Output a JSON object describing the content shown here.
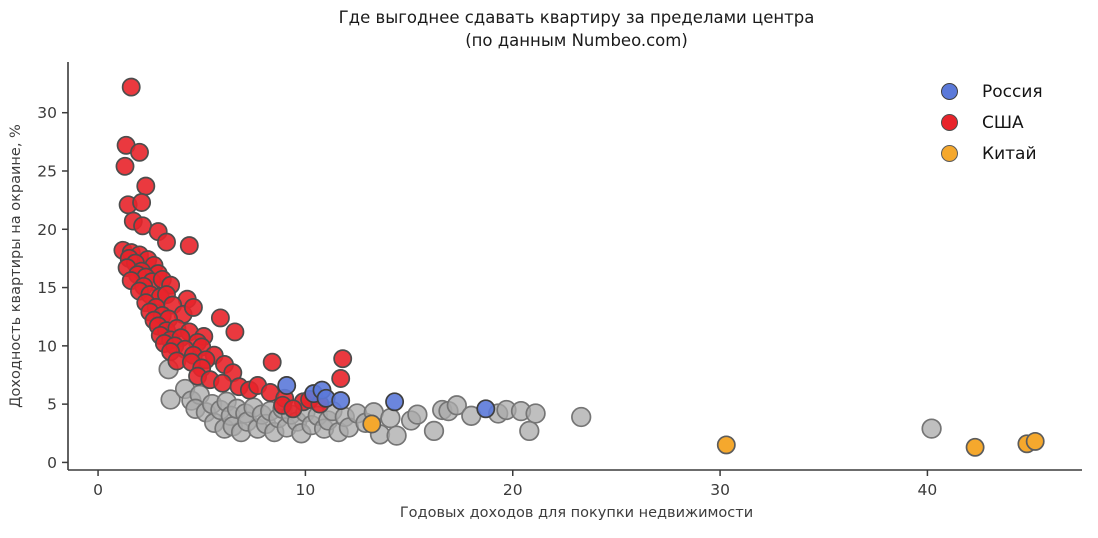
{
  "chart_data": {
    "type": "scatter",
    "title": "Где выгоднее сдавать квартиру за пределами центра",
    "subtitle": "(по данным Numbeo.com)",
    "xlabel": "Годовых доходов для покупки недвижимости",
    "ylabel": "Доходность квартиры на окраине, %",
    "xlim": [
      -1.45,
      47.6
    ],
    "ylim": [
      -0.65,
      34.35
    ],
    "xticks": [
      0,
      10,
      20,
      30,
      40
    ],
    "yticks": [
      0,
      5,
      10,
      15,
      20,
      25,
      30
    ],
    "grid": false,
    "axis_color": "#3b3b3b",
    "tick_label_color": "#3b3b3b",
    "legend": {
      "position": "upper right",
      "entries": [
        "Россия",
        "США",
        "Китай"
      ]
    },
    "draw_order": [
      3,
      1,
      0,
      2
    ],
    "series": [
      {
        "name": "Россия",
        "color": "#5b79d9",
        "edge": "#3f3f3f",
        "radius": 8.6,
        "opacity": 0.9,
        "in_legend": true,
        "points": [
          [
            9.1,
            6.6
          ],
          [
            10.4,
            5.9
          ],
          [
            10.8,
            6.2
          ],
          [
            11.0,
            5.5
          ],
          [
            11.7,
            5.3
          ],
          [
            14.3,
            5.2
          ],
          [
            18.7,
            4.6
          ]
        ]
      },
      {
        "name": "США",
        "color": "#e8232a",
        "edge": "#4d4d4d",
        "radius": 8.6,
        "opacity": 0.9,
        "in_legend": true,
        "points": [
          [
            1.6,
            32.2
          ],
          [
            1.35,
            27.2
          ],
          [
            2.0,
            26.6
          ],
          [
            1.3,
            25.4
          ],
          [
            2.3,
            23.7
          ],
          [
            1.45,
            22.1
          ],
          [
            2.1,
            22.3
          ],
          [
            1.7,
            20.7
          ],
          [
            2.15,
            20.3
          ],
          [
            2.9,
            19.8
          ],
          [
            3.3,
            18.9
          ],
          [
            4.4,
            18.6
          ],
          [
            1.2,
            18.2
          ],
          [
            1.6,
            18.0
          ],
          [
            2.0,
            17.8
          ],
          [
            1.5,
            17.5
          ],
          [
            2.4,
            17.4
          ],
          [
            1.8,
            17.1
          ],
          [
            2.7,
            16.9
          ],
          [
            1.4,
            16.7
          ],
          [
            2.1,
            16.4
          ],
          [
            1.9,
            16.1
          ],
          [
            2.9,
            16.2
          ],
          [
            2.3,
            15.9
          ],
          [
            1.6,
            15.6
          ],
          [
            2.6,
            15.5
          ],
          [
            3.1,
            15.7
          ],
          [
            2.2,
            15.1
          ],
          [
            3.5,
            15.2
          ],
          [
            2.0,
            14.7
          ],
          [
            2.5,
            14.4
          ],
          [
            3.0,
            14.2
          ],
          [
            3.3,
            14.4
          ],
          [
            4.3,
            14.0
          ],
          [
            2.3,
            13.7
          ],
          [
            2.8,
            13.3
          ],
          [
            3.6,
            13.5
          ],
          [
            2.5,
            12.9
          ],
          [
            3.1,
            12.6
          ],
          [
            4.1,
            12.7
          ],
          [
            4.6,
            13.3
          ],
          [
            2.7,
            12.2
          ],
          [
            3.4,
            12.3
          ],
          [
            5.9,
            12.4
          ],
          [
            2.9,
            11.7
          ],
          [
            3.3,
            11.3
          ],
          [
            3.8,
            11.5
          ],
          [
            4.4,
            11.2
          ],
          [
            6.6,
            11.2
          ],
          [
            3.0,
            10.9
          ],
          [
            3.5,
            10.5
          ],
          [
            4.0,
            10.7
          ],
          [
            5.1,
            10.8
          ],
          [
            3.2,
            10.2
          ],
          [
            3.7,
            10.0
          ],
          [
            4.8,
            10.3
          ],
          [
            4.2,
            9.7
          ],
          [
            3.5,
            9.5
          ],
          [
            5.0,
            9.9
          ],
          [
            4.6,
            9.2
          ],
          [
            5.6,
            9.2
          ],
          [
            5.2,
            8.8
          ],
          [
            3.8,
            8.7
          ],
          [
            4.5,
            8.6
          ],
          [
            6.1,
            8.4
          ],
          [
            5.0,
            8.1
          ],
          [
            6.5,
            7.7
          ],
          [
            8.4,
            8.6
          ],
          [
            11.8,
            8.9
          ],
          [
            4.8,
            7.4
          ],
          [
            5.4,
            7.1
          ],
          [
            6.0,
            6.8
          ],
          [
            6.8,
            6.5
          ],
          [
            7.3,
            6.2
          ],
          [
            7.7,
            6.6
          ],
          [
            8.3,
            6.0
          ],
          [
            11.7,
            7.2
          ],
          [
            9.0,
            5.5
          ],
          [
            9.9,
            5.2
          ],
          [
            10.2,
            5.4
          ],
          [
            8.9,
            4.9
          ],
          [
            9.4,
            4.6
          ],
          [
            10.7,
            5.0
          ]
        ]
      },
      {
        "name": "Китай",
        "color": "#f5a82d",
        "edge": "#5c5c5c",
        "radius": 8.6,
        "opacity": 1.0,
        "in_legend": true,
        "points": [
          [
            13.2,
            3.3
          ],
          [
            30.3,
            1.5
          ],
          [
            42.3,
            1.3
          ],
          [
            44.8,
            1.6
          ],
          [
            45.2,
            1.8
          ]
        ]
      },
      {
        "name": "other",
        "color": "#a9a9a9",
        "edge": "#757575",
        "radius": 9.3,
        "opacity": 0.75,
        "in_legend": false,
        "points": [
          [
            3.4,
            8.0
          ],
          [
            3.5,
            5.4
          ],
          [
            4.2,
            6.3
          ],
          [
            4.5,
            5.3
          ],
          [
            4.9,
            5.8
          ],
          [
            4.7,
            4.6
          ],
          [
            5.2,
            4.3
          ],
          [
            5.5,
            5.0
          ],
          [
            5.6,
            3.4
          ],
          [
            5.9,
            4.5
          ],
          [
            6.1,
            2.9
          ],
          [
            6.2,
            5.2
          ],
          [
            6.4,
            4.0
          ],
          [
            6.5,
            3.1
          ],
          [
            6.7,
            4.6
          ],
          [
            6.9,
            2.6
          ],
          [
            7.1,
            4.2
          ],
          [
            7.2,
            3.5
          ],
          [
            7.5,
            4.7
          ],
          [
            7.7,
            2.9
          ],
          [
            7.9,
            4.1
          ],
          [
            8.1,
            3.3
          ],
          [
            8.3,
            4.4
          ],
          [
            8.5,
            2.6
          ],
          [
            8.7,
            3.8
          ],
          [
            8.9,
            4.6
          ],
          [
            9.1,
            3.0
          ],
          [
            9.3,
            4.1
          ],
          [
            9.6,
            3.5
          ],
          [
            9.8,
            2.5
          ],
          [
            10.0,
            4.3
          ],
          [
            10.3,
            3.2
          ],
          [
            10.6,
            4.0
          ],
          [
            10.9,
            2.9
          ],
          [
            11.1,
            3.6
          ],
          [
            11.3,
            4.4
          ],
          [
            11.6,
            2.6
          ],
          [
            11.9,
            3.9
          ],
          [
            12.1,
            3.0
          ],
          [
            12.5,
            4.2
          ],
          [
            12.9,
            3.4
          ],
          [
            13.3,
            4.3
          ],
          [
            13.6,
            2.4
          ],
          [
            14.1,
            3.8
          ],
          [
            14.4,
            2.3
          ],
          [
            15.1,
            3.6
          ],
          [
            15.4,
            4.1
          ],
          [
            16.2,
            2.7
          ],
          [
            16.6,
            4.5
          ],
          [
            16.9,
            4.4
          ],
          [
            17.3,
            4.9
          ],
          [
            18.0,
            4.0
          ],
          [
            19.3,
            4.2
          ],
          [
            19.7,
            4.5
          ],
          [
            20.4,
            4.4
          ],
          [
            20.8,
            2.7
          ],
          [
            21.1,
            4.2
          ],
          [
            23.3,
            3.9
          ],
          [
            40.2,
            2.9
          ]
        ]
      }
    ]
  }
}
